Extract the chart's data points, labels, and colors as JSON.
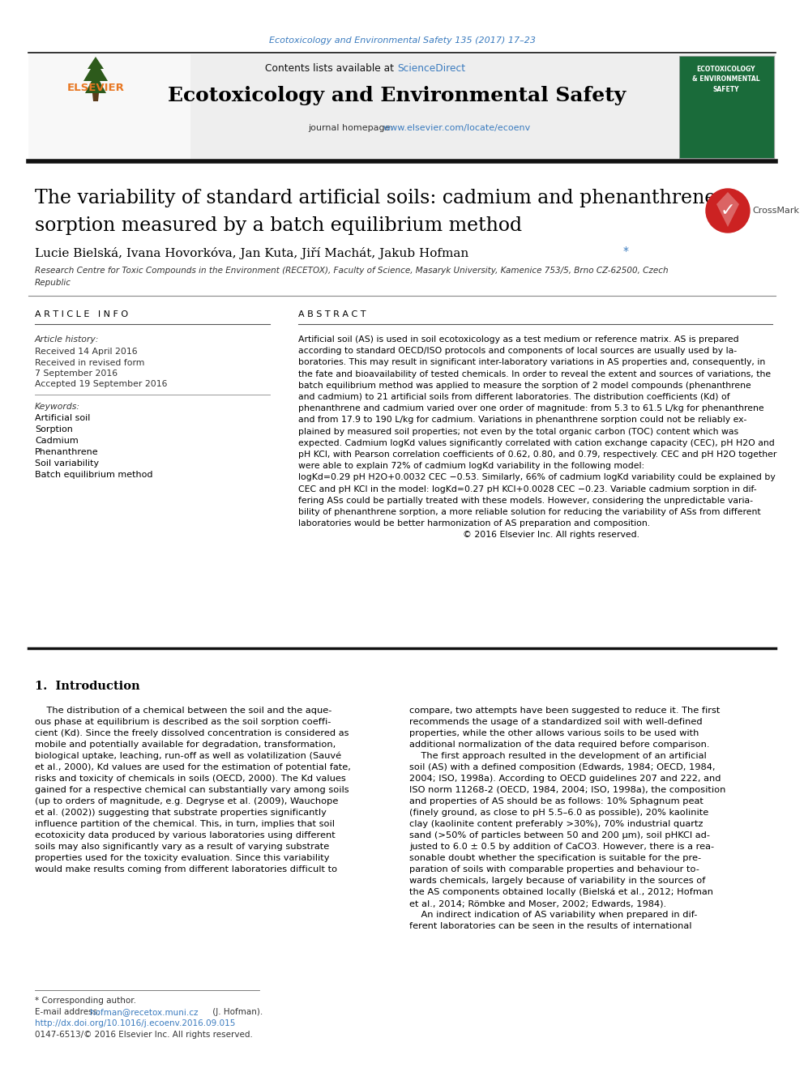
{
  "journal_ref": "Ecotoxicology and Environmental Safety 135 (2017) 17–23",
  "header_text_plain": "Contents lists available at ",
  "header_text_link": "ScienceDirect",
  "journal_name": "Ecotoxicology and Environmental Safety",
  "journal_homepage_plain": "journal homepage: ",
  "journal_homepage_link": "www.elsevier.com/locate/ecoenv",
  "title_line1": "The variability of standard artificial soils: cadmium and phenanthrene",
  "title_line2": "sorption measured by a batch equilibrium method",
  "authors_plain": "Lucie Bielská, Ivana Hovorkóva, Jan Kuta, Jiří Machát, Jakub Hofman",
  "affiliation_line1": "Research Centre for Toxic Compounds in the Environment (RECETOX), Faculty of Science, Masaryk University, Kamenice 753/5, Brno CZ-62500, Czech",
  "affiliation_line2": "Republic",
  "article_info_header": "A R T I C L E   I N F O",
  "abstract_header": "A B S T R A C T",
  "article_history_label": "Article history:",
  "received": "Received 14 April 2016",
  "received_revised1": "Received in revised form",
  "received_revised2": "7 September 2016",
  "accepted": "Accepted 19 September 2016",
  "keywords_label": "Keywords:",
  "keywords": [
    "Artificial soil",
    "Sorption",
    "Cadmium",
    "Phenanthrene",
    "Soil variability",
    "Batch equilibrium method"
  ],
  "abstract_lines": [
    "Artificial soil (AS) is used in soil ecotoxicology as a test medium or reference matrix. AS is prepared",
    "according to standard OECD/ISO protocols and components of local sources are usually used by la-",
    "boratories. This may result in significant inter-laboratory variations in AS properties and, consequently, in",
    "the fate and bioavailability of tested chemicals. In order to reveal the extent and sources of variations, the",
    "batch equilibrium method was applied to measure the sorption of 2 model compounds (phenanthrene",
    "and cadmium) to 21 artificial soils from different laboratories. The distribution coefficients (Kd) of",
    "phenanthrene and cadmium varied over one order of magnitude: from 5.3 to 61.5 L/kg for phenanthrene",
    "and from 17.9 to 190 L/kg for cadmium. Variations in phenanthrene sorption could not be reliably ex-",
    "plained by measured soil properties; not even by the total organic carbon (TOC) content which was",
    "expected. Cadmium logKd values significantly correlated with cation exchange capacity (CEC), pH H2O and",
    "pH KCl, with Pearson correlation coefficients of 0.62, 0.80, and 0.79, respectively. CEC and pH H2O together",
    "were able to explain 72% of cadmium logKd variability in the following model:",
    "logKd=0.29 pH H2O+0.0032 CEC −0.53. Similarly, 66% of cadmium logKd variability could be explained by",
    "CEC and pH KCl in the model: logKd=0.27 pH KCl+0.0028 CEC −0.23. Variable cadmium sorption in dif-",
    "fering ASs could be partially treated with these models. However, considering the unpredictable varia-",
    "bility of phenanthrene sorption, a more reliable solution for reducing the variability of ASs from different",
    "laboratories would be better harmonization of AS preparation and composition.",
    "                                                          © 2016 Elsevier Inc. All rights reserved."
  ],
  "section1_title": "1.  Introduction",
  "intro_col1_lines": [
    "    The distribution of a chemical between the soil and the aque-",
    "ous phase at equilibrium is described as the soil sorption coeffi-",
    "cient (Kd). Since the freely dissolved concentration is considered as",
    "mobile and potentially available for degradation, transformation,",
    "biological uptake, leaching, run-off as well as volatilization (Sauvé",
    "et al., 2000), Kd values are used for the estimation of potential fate,",
    "risks and toxicity of chemicals in soils (OECD, 2000). The Kd values",
    "gained for a respective chemical can substantially vary among soils",
    "(up to orders of magnitude, e.g. Degryse et al. (2009), Wauchope",
    "et al. (2002)) suggesting that substrate properties significantly",
    "influence partition of the chemical. This, in turn, implies that soil",
    "ecotoxicity data produced by various laboratories using different",
    "soils may also significantly vary as a result of varying substrate",
    "properties used for the toxicity evaluation. Since this variability",
    "would make results coming from different laboratories difficult to"
  ],
  "intro_col2_lines": [
    "compare, two attempts have been suggested to reduce it. The first",
    "recommends the usage of a standardized soil with well-defined",
    "properties, while the other allows various soils to be used with",
    "additional normalization of the data required before comparison.",
    "    The first approach resulted in the development of an artificial",
    "soil (AS) with a defined composition (Edwards, 1984; OECD, 1984,",
    "2004; ISO, 1998a). According to OECD guidelines 207 and 222, and",
    "ISO norm 11268-2 (OECD, 1984, 2004; ISO, 1998a), the composition",
    "and properties of AS should be as follows: 10% Sphagnum peat",
    "(finely ground, as close to pH 5.5–6.0 as possible), 20% kaolinite",
    "clay (kaolinite content preferably >30%), 70% industrial quartz",
    "sand (>50% of particles between 50 and 200 μm), soil pHKCl ad-",
    "justed to 6.0 ± 0.5 by addition of CaCO3. However, there is a rea-",
    "sonable doubt whether the specification is suitable for the pre-",
    "paration of soils with comparable properties and behaviour to-",
    "wards chemicals, largely because of variability in the sources of",
    "the AS components obtained locally (Bielská et al., 2012; Hofman",
    "et al., 2014; Römbke and Moser, 2002; Edwards, 1984).",
    "    An indirect indication of AS variability when prepared in dif-",
    "ferent laboratories can be seen in the results of international"
  ],
  "footnote_star": "* Corresponding author.",
  "footnote_email_plain": "E-mail address: ",
  "footnote_email_link": "hofman@recetox.muni.cz",
  "footnote_email_suffix": " (J. Hofman).",
  "footnote_doi": "http://dx.doi.org/10.1016/j.ecoenv.2016.09.015",
  "footnote_copyright": "0147-6513/© 2016 Elsevier Inc. All rights reserved.",
  "bg_color": "#ffffff",
  "header_bg": "#eeeeee",
  "link_color": "#3a7bbf",
  "text_color": "#000000",
  "gray_text": "#333333",
  "elsevier_orange": "#e87722",
  "top_line_color": "#111111",
  "thick_bar_color": "#111111"
}
